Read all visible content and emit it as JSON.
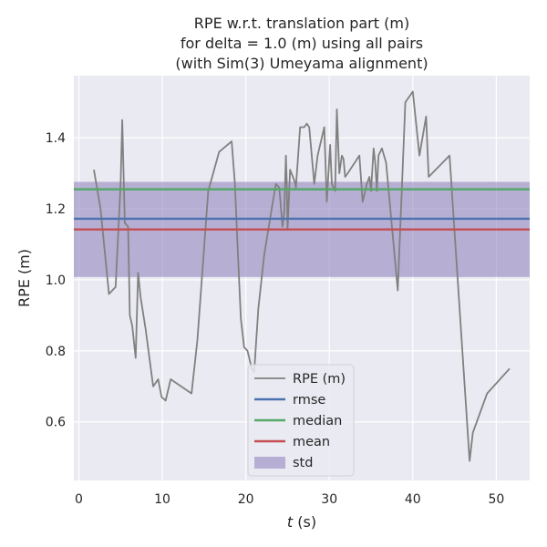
{
  "chart_data": {
    "type": "line",
    "title": [
      "RPE w.r.t. translation part (m)",
      "for delta = 1.0 (m) using all pairs",
      "(with Sim(3) Umeyama alignment)"
    ],
    "xlabel_italic": "t",
    "xlabel_rest": " (s)",
    "ylabel": "RPE (m)",
    "xlim": [
      -0.6,
      54
    ],
    "ylim": [
      0.435,
      1.575
    ],
    "xticks": [
      0,
      10,
      20,
      30,
      40,
      50
    ],
    "yticks": [
      0.6,
      0.8,
      1.0,
      1.2,
      1.4
    ],
    "xtick_labels": [
      "0",
      "10",
      "20",
      "30",
      "40",
      "50"
    ],
    "ytick_labels": [
      "0.6",
      "0.8",
      "1.0",
      "1.2",
      "1.4"
    ],
    "grid": true,
    "legend_position": "bottom-center",
    "legend": [
      "RPE (m)",
      "rmse",
      "median",
      "mean",
      "std"
    ],
    "series": [
      {
        "name": "RPE (m)",
        "color": "#808080",
        "x": [
          1.8,
          2.6,
          3.6,
          4.4,
          5.0,
          5.2,
          5.5,
          5.9,
          6.1,
          6.4,
          6.8,
          7.1,
          7.4,
          8.0,
          8.9,
          9.5,
          9.9,
          10.4,
          11.0,
          13.5,
          14.2,
          15.5,
          16.8,
          18.3,
          18.7,
          19.0,
          19.4,
          19.8,
          20.2,
          20.7,
          21.0,
          21.5,
          22.2,
          23.1,
          23.6,
          24.0,
          24.4,
          24.6,
          24.8,
          24.9,
          25.0,
          25.3,
          25.8,
          26.0,
          26.5,
          27.0,
          27.3,
          27.6,
          28.2,
          28.6,
          29.4,
          29.7,
          30.1,
          30.3,
          30.7,
          30.9,
          31.2,
          31.5,
          31.7,
          31.9,
          32.2,
          33.6,
          34.0,
          34.5,
          34.8,
          35.0,
          35.3,
          35.5,
          35.7,
          35.9,
          36.3,
          36.8,
          38.2,
          39.1,
          40.0,
          40.8,
          41.6,
          41.9,
          44.4,
          46.8,
          47.2,
          48.9,
          51.6
        ],
        "y": [
          1.31,
          1.2,
          0.96,
          0.98,
          1.27,
          1.45,
          1.16,
          1.15,
          0.9,
          0.87,
          0.78,
          1.02,
          0.95,
          0.86,
          0.7,
          0.72,
          0.67,
          0.66,
          0.72,
          0.68,
          0.83,
          1.25,
          1.36,
          1.39,
          1.27,
          1.1,
          0.89,
          0.81,
          0.8,
          0.75,
          0.74,
          0.92,
          1.07,
          1.2,
          1.27,
          1.26,
          1.15,
          1.19,
          1.35,
          1.28,
          1.14,
          1.31,
          1.28,
          1.26,
          1.43,
          1.43,
          1.44,
          1.43,
          1.27,
          1.35,
          1.43,
          1.22,
          1.38,
          1.27,
          1.25,
          1.48,
          1.3,
          1.35,
          1.34,
          1.29,
          1.3,
          1.35,
          1.22,
          1.27,
          1.29,
          1.25,
          1.37,
          1.33,
          1.25,
          1.35,
          1.37,
          1.33,
          0.97,
          1.5,
          1.53,
          1.35,
          1.46,
          1.29,
          1.35,
          0.49,
          0.57,
          0.68,
          0.75
        ]
      },
      {
        "name": "rmse",
        "color": "#4c72b0",
        "y": 1.172
      },
      {
        "name": "median",
        "color": "#55a868",
        "y": 1.255
      },
      {
        "name": "mean",
        "color": "#c44e52",
        "y": 1.142
      },
      {
        "name": "std",
        "color": "#8172b3",
        "range": [
          1.008,
          1.276
        ]
      }
    ]
  }
}
